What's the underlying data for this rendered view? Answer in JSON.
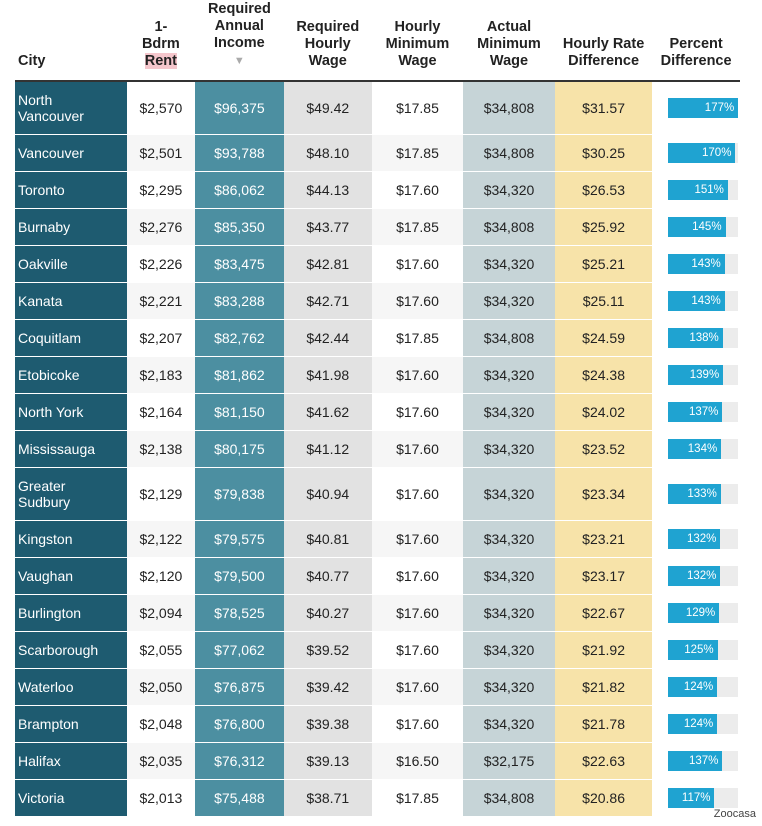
{
  "headers": {
    "city": "City",
    "rent_a": "1-",
    "rent_b": "Bdrm",
    "rent_c": "Rent",
    "income": "Required Annual Income",
    "sort_icon": "triangle-down",
    "hourly": "Required Hourly Wage",
    "minwage": "Hourly Minimum Wage",
    "actual": "Actual Minimum Wage",
    "diff": "Hourly Rate Difference",
    "pct": "Percent Difference"
  },
  "colors": {
    "city": "#1e5b70",
    "income": "#4c8fa1",
    "bar": "#1fa3d1",
    "diff": "#f7e3a9",
    "actual": "#c6d4d7"
  },
  "rows": [
    [
      "North Vancouver",
      "$2,570",
      "$96,375",
      "$49.42",
      "$17.85",
      "$34,808",
      "$31.57",
      "177%"
    ],
    [
      "Vancouver",
      "$2,501",
      "$93,788",
      "$48.10",
      "$17.85",
      "$34,808",
      "$30.25",
      "170%"
    ],
    [
      "Toronto",
      "$2,295",
      "$86,062",
      "$44.13",
      "$17.60",
      "$34,320",
      "$26.53",
      "151%"
    ],
    [
      "Burnaby",
      "$2,276",
      "$85,350",
      "$43.77",
      "$17.85",
      "$34,808",
      "$25.92",
      "145%"
    ],
    [
      "Oakville",
      "$2,226",
      "$83,475",
      "$42.81",
      "$17.60",
      "$34,320",
      "$25.21",
      "143%"
    ],
    [
      "Kanata",
      "$2,221",
      "$83,288",
      "$42.71",
      "$17.60",
      "$34,320",
      "$25.11",
      "143%"
    ],
    [
      "Coquitlam",
      "$2,207",
      "$82,762",
      "$42.44",
      "$17.85",
      "$34,808",
      "$24.59",
      "138%"
    ],
    [
      "Etobicoke",
      "$2,183",
      "$81,862",
      "$41.98",
      "$17.60",
      "$34,320",
      "$24.38",
      "139%"
    ],
    [
      "North York",
      "$2,164",
      "$81,150",
      "$41.62",
      "$17.60",
      "$34,320",
      "$24.02",
      "137%"
    ],
    [
      "Mississauga",
      "$2,138",
      "$80,175",
      "$41.12",
      "$17.60",
      "$34,320",
      "$23.52",
      "134%"
    ],
    [
      "Greater Sudbury",
      "$2,129",
      "$79,838",
      "$40.94",
      "$17.60",
      "$34,320",
      "$23.34",
      "133%"
    ],
    [
      "Kingston",
      "$2,122",
      "$79,575",
      "$40.81",
      "$17.60",
      "$34,320",
      "$23.21",
      "132%"
    ],
    [
      "Vaughan",
      "$2,120",
      "$79,500",
      "$40.77",
      "$17.60",
      "$34,320",
      "$23.17",
      "132%"
    ],
    [
      "Burlington",
      "$2,094",
      "$78,525",
      "$40.27",
      "$17.60",
      "$34,320",
      "$22.67",
      "129%"
    ],
    [
      "Scarborough",
      "$2,055",
      "$77,062",
      "$39.52",
      "$17.60",
      "$34,320",
      "$21.92",
      "125%"
    ],
    [
      "Waterloo",
      "$2,050",
      "$76,875",
      "$39.42",
      "$17.60",
      "$34,320",
      "$21.82",
      "124%"
    ],
    [
      "Brampton",
      "$2,048",
      "$76,800",
      "$39.38",
      "$17.60",
      "$34,320",
      "$21.78",
      "124%"
    ],
    [
      "Halifax",
      "$2,035",
      "$76,312",
      "$39.13",
      "$16.50",
      "$32,175",
      "$22.63",
      "137%"
    ],
    [
      "Victoria",
      "$2,013",
      "$75,488",
      "$38.71",
      "$17.85",
      "$34,808",
      "$20.86",
      "117%"
    ]
  ],
  "source": "Zoocasa"
}
